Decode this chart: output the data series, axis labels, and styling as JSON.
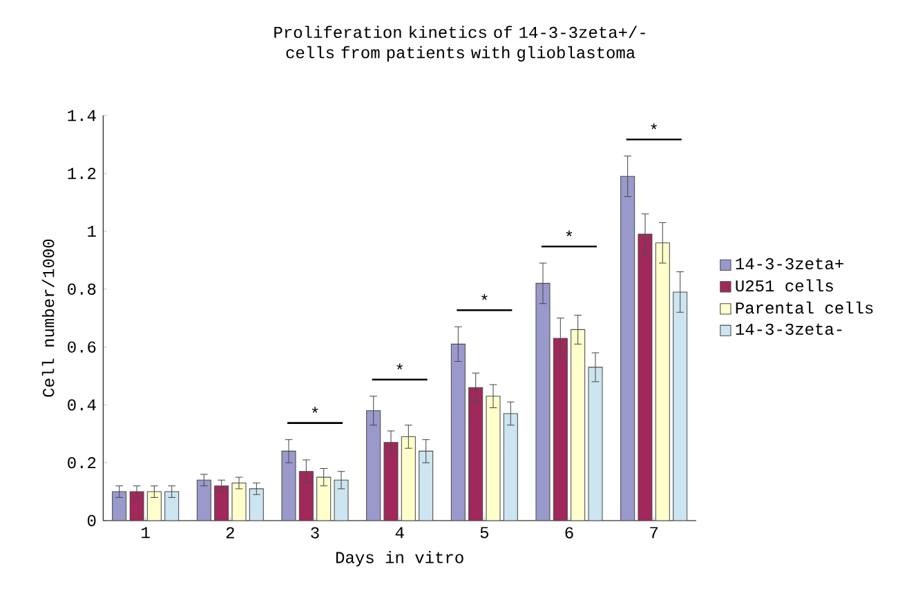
{
  "chart_data": {
    "type": "bar",
    "title": "Proliferation kinetics of 14-3-3zeta+/- cells from patients with glioblastoma",
    "xlabel": "Days in vitro",
    "ylabel": "Cell number/1000",
    "categories": [
      "1",
      "2",
      "3",
      "4",
      "5",
      "6",
      "7"
    ],
    "series": [
      {
        "name": "14-3-3zeta+",
        "color": "#9999cc",
        "values": [
          0.1,
          0.14,
          0.24,
          0.38,
          0.61,
          0.82,
          1.19
        ],
        "errors": [
          0.02,
          0.02,
          0.04,
          0.05,
          0.06,
          0.07,
          0.07
        ]
      },
      {
        "name": "U251 cells",
        "color": "#a0285a",
        "values": [
          0.1,
          0.12,
          0.17,
          0.27,
          0.46,
          0.63,
          0.99
        ],
        "errors": [
          0.02,
          0.02,
          0.04,
          0.04,
          0.05,
          0.07,
          0.07
        ]
      },
      {
        "name": "Parental cells",
        "color": "#ffffcc",
        "values": [
          0.1,
          0.13,
          0.15,
          0.29,
          0.43,
          0.66,
          0.96
        ],
        "errors": [
          0.02,
          0.02,
          0.03,
          0.04,
          0.04,
          0.05,
          0.07
        ]
      },
      {
        "name": "14-3-3zeta-",
        "color": "#cce5f0",
        "values": [
          0.1,
          0.11,
          0.14,
          0.24,
          0.37,
          0.53,
          0.79
        ],
        "errors": [
          0.02,
          0.02,
          0.03,
          0.04,
          0.04,
          0.05,
          0.07
        ]
      }
    ],
    "ylim": [
      0,
      1.4
    ],
    "yticks": [
      0,
      0.2,
      0.4,
      0.6,
      0.8,
      1,
      1.2,
      1.4
    ],
    "annotations": [
      "*",
      "*",
      "*",
      "*",
      "*"
    ],
    "legend": "right",
    "grid": false
  }
}
